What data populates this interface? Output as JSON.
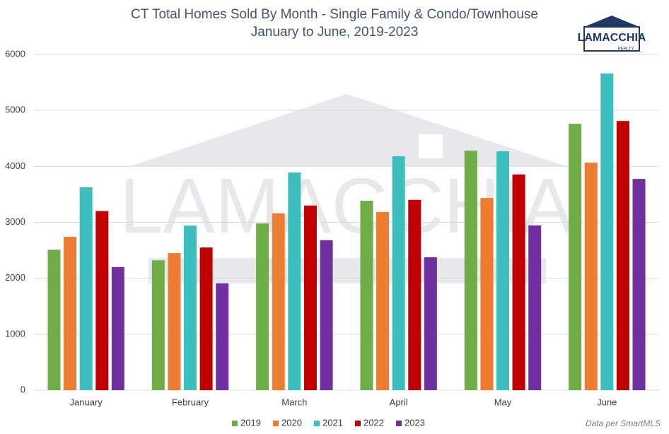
{
  "chart_data": {
    "type": "bar",
    "title": "CT Total Homes Sold By Month - Single Family & Condo/Townhouse",
    "subtitle": "January to June, 2019-2023",
    "logo": {
      "name": "LAMACCHIA",
      "tagline": "REALTY"
    },
    "source": "Data per SmartMLS",
    "categories": [
      "January",
      "February",
      "March",
      "April",
      "May",
      "June"
    ],
    "series": [
      {
        "name": "2019",
        "color": "#70ad47",
        "values": [
          2510,
          2320,
          2980,
          3385,
          4280,
          4760
        ]
      },
      {
        "name": "2020",
        "color": "#ed7d31",
        "values": [
          2740,
          2450,
          3160,
          3185,
          3435,
          4065
        ]
      },
      {
        "name": "2021",
        "color": "#3dbfbf",
        "values": [
          3625,
          2940,
          3890,
          4180,
          4270,
          5660
        ]
      },
      {
        "name": "2022",
        "color": "#c00000",
        "values": [
          3200,
          2550,
          3300,
          3400,
          3855,
          4810
        ]
      },
      {
        "name": "2023",
        "color": "#7030a0",
        "values": [
          2200,
          1910,
          2680,
          2375,
          2945,
          3775
        ]
      }
    ],
    "ylim": [
      0,
      6000
    ],
    "yticks": [
      0,
      1000,
      2000,
      3000,
      4000,
      5000,
      6000
    ],
    "grid": true,
    "legend": "bottom"
  }
}
